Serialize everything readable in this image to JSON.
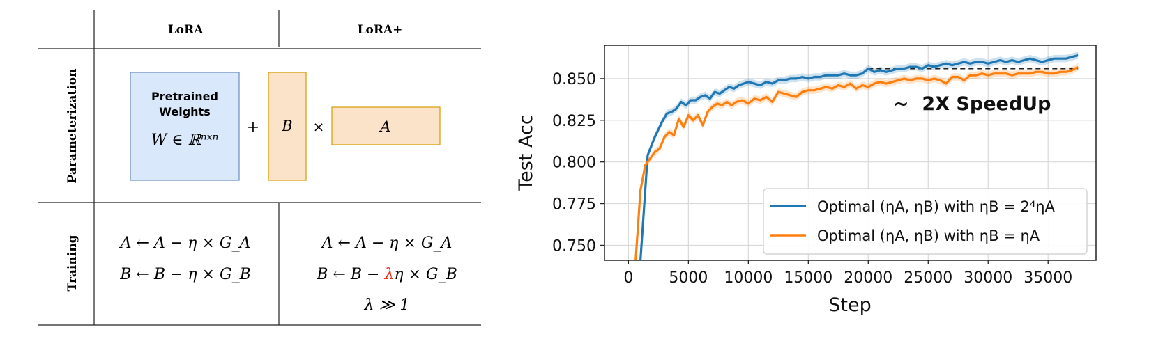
{
  "table": {
    "col_headers": [
      "LoRA",
      "LoRA+"
    ],
    "row_labels": [
      "Parameterization",
      "Training"
    ],
    "pretrained_label_line1": "Pretrained",
    "pretrained_label_line2": "Weights",
    "pretrained_eq": "W ∈ ℝⁿˣⁿ",
    "plus_symbol": "+",
    "times_symbol": "×",
    "matrix_b": "B",
    "matrix_a": "A",
    "lora_eq_a": "A ← A − η × G_A",
    "lora_eq_b": "B ← B − η × G_B",
    "loraplus_eq_a": "A ← A − η × G_A",
    "loraplus_eq_b_prefix": "B ← B − ",
    "loraplus_eq_b_lambda": "λ",
    "loraplus_eq_b_suffix": "η × G_B",
    "loraplus_cond": "λ ≫ 1",
    "colors": {
      "pretrained_fill": "#dae8fc",
      "pretrained_stroke": "#6c8ebf",
      "matrix_fill": "#fae3c8",
      "matrix_stroke": "#d79b00",
      "lambda_color": "#e8321e"
    }
  },
  "chart_data": {
    "type": "line",
    "xlabel": "Step",
    "ylabel": "Test Acc",
    "xlim": [
      -2000,
      39000
    ],
    "ylim": [
      0.741,
      0.87
    ],
    "xticks": [
      0,
      5000,
      10000,
      15000,
      20000,
      25000,
      30000,
      35000
    ],
    "yticks": [
      0.75,
      0.775,
      0.8,
      0.825,
      0.85
    ],
    "ytick_labels": [
      "0.750",
      "0.775",
      "0.800",
      "0.825",
      "0.850"
    ],
    "grid": true,
    "legend_position": "lower-right",
    "annotation": "~  2X SpeedUp",
    "reference_line": {
      "y": 0.856,
      "x": [
        20000,
        37500
      ],
      "style": "dashed"
    },
    "series": [
      {
        "name": "Optimal (ηA, ηB) with ηB = 2⁴ηA",
        "color": "#1f77b4",
        "points": [
          [
            1000,
            0.73
          ],
          [
            1600,
            0.804
          ],
          [
            2200,
            0.815
          ],
          [
            2800,
            0.824
          ],
          [
            3200,
            0.829
          ],
          [
            3600,
            0.83
          ],
          [
            4000,
            0.832
          ],
          [
            4400,
            0.836
          ],
          [
            4800,
            0.834
          ],
          [
            5200,
            0.837
          ],
          [
            5600,
            0.837
          ],
          [
            6000,
            0.839
          ],
          [
            6400,
            0.84
          ],
          [
            6800,
            0.838
          ],
          [
            7200,
            0.842
          ],
          [
            7600,
            0.841
          ],
          [
            8000,
            0.843
          ],
          [
            8400,
            0.845
          ],
          [
            8800,
            0.844
          ],
          [
            9200,
            0.846
          ],
          [
            9600,
            0.847
          ],
          [
            10000,
            0.848
          ],
          [
            10500,
            0.847
          ],
          [
            11000,
            0.846
          ],
          [
            11500,
            0.848
          ],
          [
            12000,
            0.847
          ],
          [
            12500,
            0.849
          ],
          [
            13000,
            0.849
          ],
          [
            13500,
            0.85
          ],
          [
            14000,
            0.85
          ],
          [
            14500,
            0.851
          ],
          [
            15000,
            0.85
          ],
          [
            15500,
            0.851
          ],
          [
            16000,
            0.851
          ],
          [
            16500,
            0.852
          ],
          [
            17000,
            0.852
          ],
          [
            17500,
            0.852
          ],
          [
            18000,
            0.853
          ],
          [
            18500,
            0.852
          ],
          [
            19000,
            0.852
          ],
          [
            19500,
            0.853
          ],
          [
            20000,
            0.856
          ],
          [
            20500,
            0.854
          ],
          [
            21000,
            0.855
          ],
          [
            21500,
            0.854
          ],
          [
            22000,
            0.855
          ],
          [
            22500,
            0.856
          ],
          [
            23000,
            0.856
          ],
          [
            23500,
            0.857
          ],
          [
            24000,
            0.857
          ],
          [
            24500,
            0.856
          ],
          [
            25000,
            0.858
          ],
          [
            25500,
            0.857
          ],
          [
            26000,
            0.858
          ],
          [
            26500,
            0.859
          ],
          [
            27000,
            0.858
          ],
          [
            27500,
            0.859
          ],
          [
            28000,
            0.86
          ],
          [
            28500,
            0.859
          ],
          [
            29000,
            0.86
          ],
          [
            29500,
            0.86
          ],
          [
            30000,
            0.859
          ],
          [
            30500,
            0.86
          ],
          [
            31000,
            0.861
          ],
          [
            31500,
            0.86
          ],
          [
            32000,
            0.861
          ],
          [
            32500,
            0.86
          ],
          [
            33000,
            0.861
          ],
          [
            33500,
            0.862
          ],
          [
            34000,
            0.861
          ],
          [
            34500,
            0.86
          ],
          [
            35000,
            0.861
          ],
          [
            35500,
            0.862
          ],
          [
            36000,
            0.862
          ],
          [
            36500,
            0.862
          ],
          [
            37000,
            0.863
          ],
          [
            37500,
            0.864
          ]
        ]
      },
      {
        "name": "Optimal (ηA, ηB) with ηB = ηA",
        "color": "#ff7f0e",
        "points": [
          [
            600,
            0.735
          ],
          [
            1000,
            0.783
          ],
          [
            1400,
            0.798
          ],
          [
            1800,
            0.802
          ],
          [
            2200,
            0.806
          ],
          [
            2600,
            0.808
          ],
          [
            3000,
            0.815
          ],
          [
            3400,
            0.818
          ],
          [
            3800,
            0.816
          ],
          [
            4200,
            0.826
          ],
          [
            4600,
            0.821
          ],
          [
            5000,
            0.828
          ],
          [
            5400,
            0.825
          ],
          [
            5800,
            0.828
          ],
          [
            6200,
            0.822
          ],
          [
            6600,
            0.83
          ],
          [
            7000,
            0.833
          ],
          [
            7400,
            0.835
          ],
          [
            7800,
            0.834
          ],
          [
            8200,
            0.836
          ],
          [
            8600,
            0.834
          ],
          [
            9000,
            0.836
          ],
          [
            9500,
            0.837
          ],
          [
            10000,
            0.835
          ],
          [
            10500,
            0.838
          ],
          [
            11000,
            0.837
          ],
          [
            11500,
            0.839
          ],
          [
            12000,
            0.836
          ],
          [
            12500,
            0.842
          ],
          [
            13000,
            0.841
          ],
          [
            13500,
            0.84
          ],
          [
            14000,
            0.839
          ],
          [
            14500,
            0.842
          ],
          [
            15000,
            0.843
          ],
          [
            15500,
            0.843
          ],
          [
            16000,
            0.844
          ],
          [
            16500,
            0.845
          ],
          [
            17000,
            0.844
          ],
          [
            17500,
            0.846
          ],
          [
            18000,
            0.845
          ],
          [
            18500,
            0.847
          ],
          [
            19000,
            0.844
          ],
          [
            19500,
            0.846
          ],
          [
            20000,
            0.845
          ],
          [
            20500,
            0.847
          ],
          [
            21000,
            0.848
          ],
          [
            21500,
            0.847
          ],
          [
            22000,
            0.848
          ],
          [
            22500,
            0.849
          ],
          [
            23000,
            0.85
          ],
          [
            23500,
            0.849
          ],
          [
            24000,
            0.85
          ],
          [
            24500,
            0.85
          ],
          [
            25000,
            0.849
          ],
          [
            25500,
            0.85
          ],
          [
            26000,
            0.849
          ],
          [
            26500,
            0.847
          ],
          [
            27000,
            0.851
          ],
          [
            27500,
            0.851
          ],
          [
            28000,
            0.849
          ],
          [
            28500,
            0.852
          ],
          [
            29000,
            0.852
          ],
          [
            29500,
            0.853
          ],
          [
            30000,
            0.852
          ],
          [
            30500,
            0.853
          ],
          [
            31000,
            0.853
          ],
          [
            31500,
            0.853
          ],
          [
            32000,
            0.852
          ],
          [
            32500,
            0.853
          ],
          [
            33000,
            0.853
          ],
          [
            33500,
            0.853
          ],
          [
            34000,
            0.854
          ],
          [
            34500,
            0.854
          ],
          [
            35000,
            0.853
          ],
          [
            35500,
            0.853
          ],
          [
            36000,
            0.854
          ],
          [
            36500,
            0.854
          ],
          [
            37000,
            0.855
          ],
          [
            37500,
            0.857
          ]
        ]
      }
    ]
  }
}
